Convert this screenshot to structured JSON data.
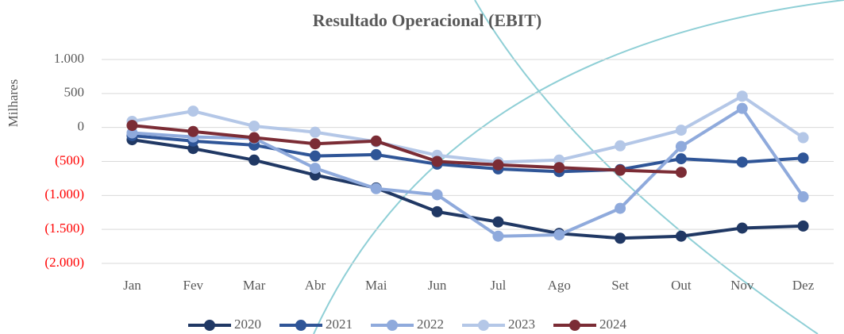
{
  "chart_data": {
    "type": "line",
    "title": "Resultado Operacional (EBIT)",
    "y_label": "Milhares",
    "categories": [
      "Jan",
      "Fev",
      "Mar",
      "Abr",
      "Mai",
      "Jun",
      "Jul",
      "Ago",
      "Set",
      "Out",
      "Nov",
      "Dez"
    ],
    "series": [
      {
        "name": "2020",
        "color": "#203864",
        "values": [
          -180,
          -310,
          -480,
          -700,
          -890,
          -1240,
          -1390,
          -1560,
          -1630,
          -1600,
          -1480,
          -1450
        ]
      },
      {
        "name": "2021",
        "color": "#2f5597",
        "values": [
          -120,
          -200,
          -260,
          -420,
          -400,
          -540,
          -610,
          -650,
          -620,
          -460,
          -510,
          -450
        ]
      },
      {
        "name": "2022",
        "color": "#8faadc",
        "values": [
          -80,
          -140,
          -160,
          -600,
          -900,
          -990,
          -1600,
          -1580,
          -1190,
          -280,
          280,
          -1020
        ]
      },
      {
        "name": "2023",
        "color": "#b4c7e7",
        "values": [
          90,
          240,
          20,
          -70,
          -210,
          -410,
          -510,
          -480,
          -270,
          -40,
          460,
          -150
        ]
      },
      {
        "name": "2024",
        "color": "#7b2c35",
        "values": [
          30,
          -60,
          -150,
          -240,
          -200,
          -500,
          -550,
          -590,
          -630,
          -660,
          null,
          null
        ]
      }
    ],
    "ylim": [
      -2000,
      1000
    ],
    "yticks": [
      {
        "value": 1000,
        "label": "1.000"
      },
      500,
      0,
      {
        "value": -500,
        "label": "(500)"
      },
      {
        "value": -1000,
        "label": "(1.000)"
      },
      {
        "value": -1500,
        "label": "(1.500)"
      },
      {
        "value": -2000,
        "label": "(2.000)"
      }
    ],
    "negative_tick_color": "#ff0000",
    "grid": true,
    "legend": "bottom"
  }
}
